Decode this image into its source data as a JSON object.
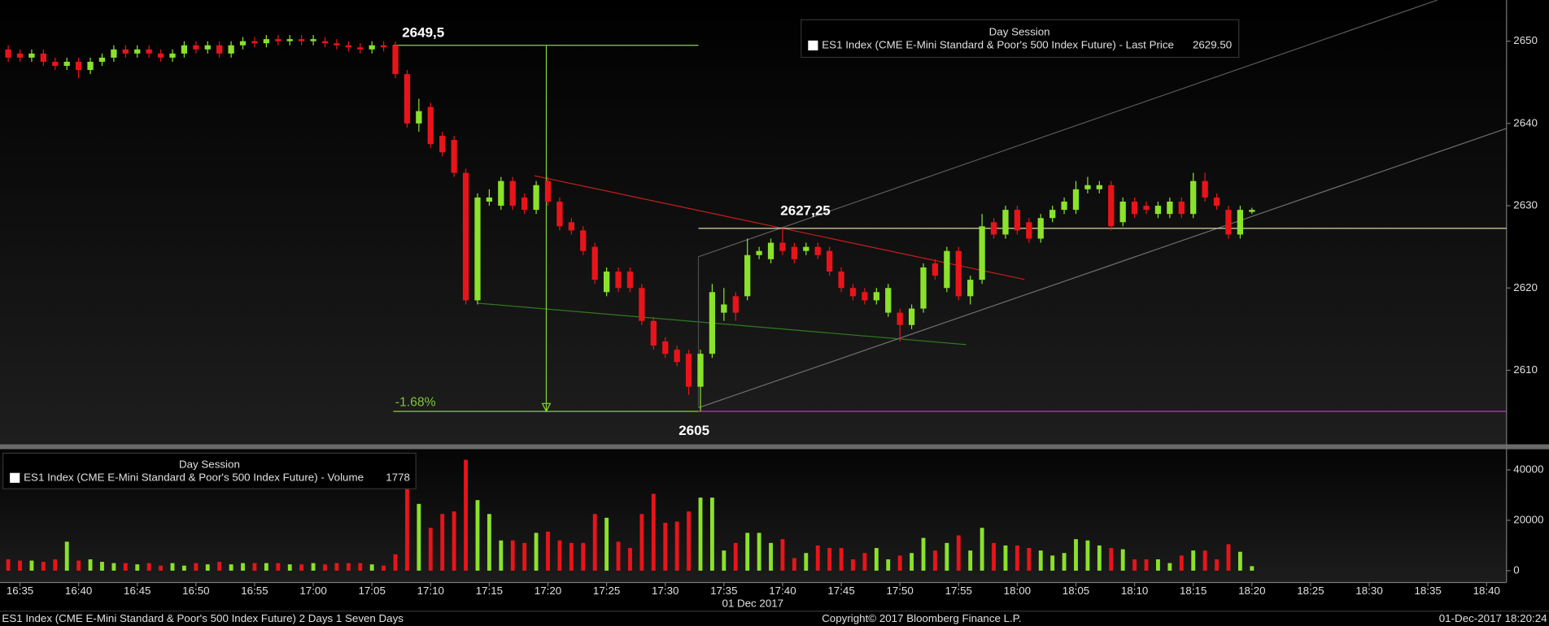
{
  "chart_data": [
    {
      "type": "candlestick",
      "legend_title": "Day Session",
      "series": [
        {
          "name": "ES1 Index (CME E-Mini Standard & Poor's 500 Index Future) - Last Price",
          "last_label": "2629.50",
          "open": [
            2649,
            2648.5,
            2648,
            2648.5,
            2647.5,
            2647,
            2647.5,
            2646.5,
            2647.5,
            2648,
            2649,
            2648.5,
            2649,
            2648.5,
            2648,
            2648.5,
            2649.5,
            2649,
            2649.5,
            2648.5,
            2649.5,
            2650,
            2649.75,
            2650.25,
            2650,
            2650.25,
            2650,
            2650,
            2649.75,
            2649.5,
            2649.25,
            2649,
            2649.5,
            2649.5,
            2646,
            2640,
            2642,
            2638.5,
            2638,
            2634,
            2618.5,
            2630.5,
            2630,
            2633,
            2631,
            2629.5,
            2633,
            2630.5,
            2628,
            2627,
            2625,
            2619.5,
            2622,
            2622,
            2620,
            2616,
            2613.5,
            2612.5,
            2612,
            2608,
            2612,
            2617,
            2619,
            2619,
            2624,
            2623.5,
            2625.5,
            2625,
            2624.5,
            2625,
            2624.5,
            2622,
            2620,
            2619.5,
            2618.5,
            2617,
            2617,
            2615.5,
            2617.5,
            2623,
            2620,
            2624.5,
            2619,
            2621,
            2628,
            2626.5,
            2629.5,
            2628,
            2626,
            2628.5,
            2629.5,
            2629.5,
            2632,
            2632,
            2632.5,
            2628,
            2630.5,
            2630,
            2629,
            2629,
            2630.5,
            2629,
            2633,
            2631,
            2629.5,
            2626.5,
            2629.25
          ],
          "high": [
            2649.5,
            2649,
            2649,
            2649,
            2648,
            2648,
            2648,
            2648,
            2648.5,
            2649.5,
            2649.5,
            2649.5,
            2649.5,
            2649,
            2649,
            2650,
            2650,
            2650,
            2650,
            2650,
            2650.5,
            2650.5,
            2650.75,
            2650.75,
            2650.75,
            2650.75,
            2650.75,
            2650.5,
            2650.25,
            2650,
            2649.75,
            2650,
            2650,
            2650,
            2646.5,
            2643,
            2642.5,
            2639,
            2638.5,
            2634.5,
            2631.5,
            2632,
            2633.5,
            2633.5,
            2631.5,
            2633,
            2633.5,
            2631,
            2628.5,
            2627.5,
            2625.5,
            2622.5,
            2622.5,
            2622.5,
            2620.5,
            2616.5,
            2614,
            2613,
            2612.5,
            2612.5,
            2620.5,
            2620,
            2619.5,
            2626,
            2625,
            2626,
            2627.25,
            2625.5,
            2625.5,
            2625.5,
            2625,
            2622.5,
            2620.5,
            2620,
            2620,
            2620.5,
            2617.5,
            2618,
            2623,
            2623.5,
            2625,
            2625,
            2621.5,
            2629,
            2628.5,
            2630,
            2630,
            2628.5,
            2629,
            2630,
            2631,
            2633,
            2633.5,
            2633,
            2633,
            2631,
            2631,
            2630.5,
            2630.5,
            2631,
            2631,
            2634,
            2634,
            2631.5,
            2630,
            2630,
            2629.75
          ],
          "low": [
            2647.5,
            2647.5,
            2647.5,
            2647,
            2646.5,
            2646.5,
            2645.5,
            2646,
            2647,
            2647.5,
            2648,
            2648,
            2648,
            2647.5,
            2647.5,
            2648,
            2648.5,
            2648.5,
            2648,
            2648,
            2649,
            2649.25,
            2649.25,
            2649.5,
            2649.5,
            2649.5,
            2649.5,
            2649.25,
            2649,
            2648.75,
            2648.5,
            2648.5,
            2648.75,
            2645.5,
            2639.5,
            2639,
            2637,
            2636,
            2633.5,
            2618,
            2618,
            2630,
            2629.5,
            2629.5,
            2629,
            2629,
            2630,
            2627,
            2626.5,
            2624,
            2620.5,
            2619,
            2619.5,
            2619.5,
            2615.5,
            2612.5,
            2611.5,
            2610.5,
            2607,
            2605,
            2611.5,
            2616,
            2616,
            2618.5,
            2623.5,
            2623,
            2624,
            2623,
            2624,
            2623.5,
            2621.5,
            2619.5,
            2618.5,
            2618,
            2618,
            2616.5,
            2613.5,
            2615,
            2617,
            2621,
            2619.5,
            2618.5,
            2618,
            2620.5,
            2626,
            2626,
            2626.5,
            2625.5,
            2625.5,
            2628,
            2629,
            2629,
            2631.5,
            2631.5,
            2627,
            2627.5,
            2628.5,
            2629,
            2628.5,
            2628.5,
            2628.5,
            2628.5,
            2630.5,
            2629.5,
            2626,
            2626,
            2629
          ],
          "close": [
            2648,
            2648,
            2648.5,
            2647.5,
            2647,
            2647.5,
            2646.5,
            2647.5,
            2648,
            2649,
            2648.5,
            2649,
            2648.5,
            2648,
            2648.5,
            2649.5,
            2649,
            2649.5,
            2648.5,
            2649.5,
            2650,
            2649.75,
            2650.25,
            2650,
            2650.25,
            2650,
            2650.25,
            2649.75,
            2649.5,
            2649.25,
            2649,
            2649.5,
            2649.25,
            2646,
            2640,
            2641.5,
            2637.5,
            2636.5,
            2634,
            2618.5,
            2631,
            2631,
            2633,
            2630,
            2629.5,
            2632.5,
            2630.5,
            2627.5,
            2627,
            2624.5,
            2621,
            2622,
            2620,
            2620,
            2616,
            2613,
            2612,
            2611,
            2608,
            2612,
            2619.5,
            2618,
            2617,
            2624,
            2624.5,
            2625.5,
            2624.5,
            2623.5,
            2625,
            2624,
            2622,
            2620,
            2619,
            2618.5,
            2619.5,
            2620,
            2615.5,
            2617.5,
            2622.5,
            2621.5,
            2624.5,
            2619,
            2621,
            2627.5,
            2626.5,
            2629.5,
            2627,
            2626,
            2628.5,
            2629.5,
            2630.5,
            2632,
            2632.5,
            2632.5,
            2627.5,
            2630.5,
            2629,
            2629.5,
            2630,
            2630.5,
            2629,
            2633,
            2631,
            2630,
            2626.5,
            2629.5,
            2629.5
          ]
        }
      ],
      "x": [
        994,
        995,
        996,
        997,
        998,
        999,
        1000,
        1001,
        1002,
        1003,
        1004,
        1005,
        1006,
        1007,
        1008,
        1009,
        1010,
        1011,
        1012,
        1013,
        1014,
        1015,
        1016,
        1017,
        1018,
        1019,
        1020,
        1021,
        1022,
        1023,
        1024,
        1025,
        1026,
        1027,
        1028,
        1029,
        1030,
        1031,
        1032,
        1033,
        1034,
        1035,
        1036,
        1037,
        1038,
        1039,
        1040,
        1041,
        1042,
        1043,
        1044,
        1045,
        1046,
        1047,
        1048,
        1049,
        1050,
        1051,
        1052,
        1053,
        1054,
        1055,
        1056,
        1057,
        1058,
        1059,
        1060,
        1061,
        1062,
        1063,
        1064,
        1065,
        1066,
        1067,
        1068,
        1069,
        1070,
        1071,
        1072,
        1073,
        1074,
        1075,
        1076,
        1077,
        1078,
        1079,
        1080,
        1081,
        1082,
        1083,
        1084,
        1085,
        1086,
        1087,
        1088,
        1089,
        1090,
        1091,
        1092,
        1093,
        1094,
        1095,
        1096,
        1097,
        1098,
        1099,
        1100
      ],
      "up_color": "#8ae22a",
      "down_color": "#e8141a",
      "xlim": [
        993.3,
        1121.7
      ],
      "xticks": [
        {
          "value": 995,
          "label": "16:35"
        },
        {
          "value": 1000,
          "label": "16:40"
        },
        {
          "value": 1005,
          "label": "16:45"
        },
        {
          "value": 1010,
          "label": "16:50"
        },
        {
          "value": 1015,
          "label": "16:55"
        },
        {
          "value": 1020,
          "label": "17:00"
        },
        {
          "value": 1025,
          "label": "17:05"
        },
        {
          "value": 1030,
          "label": "17:10"
        },
        {
          "value": 1035,
          "label": "17:15"
        },
        {
          "value": 1040,
          "label": "17:20"
        },
        {
          "value": 1045,
          "label": "17:25"
        },
        {
          "value": 1050,
          "label": "17:30"
        },
        {
          "value": 1055,
          "label": "17:35"
        },
        {
          "value": 1060,
          "label": "17:40"
        },
        {
          "value": 1065,
          "label": "17:45"
        },
        {
          "value": 1070,
          "label": "17:50"
        },
        {
          "value": 1075,
          "label": "17:55"
        },
        {
          "value": 1080,
          "label": "18:00"
        },
        {
          "value": 1085,
          "label": "18:05"
        },
        {
          "value": 1090,
          "label": "18:10"
        },
        {
          "value": 1095,
          "label": "18:15"
        },
        {
          "value": 1100,
          "label": "18:20"
        },
        {
          "value": 1105,
          "label": "18:25"
        },
        {
          "value": 1110,
          "label": "18:30"
        },
        {
          "value": 1115,
          "label": "18:35"
        },
        {
          "value": 1120,
          "label": "18:40"
        }
      ],
      "x_date_label": "01 Dec 2017",
      "ylim": [
        2601,
        2655
      ],
      "yticks": [
        2610,
        2620,
        2630,
        2640,
        2650
      ],
      "grid": false,
      "annotations": [
        {
          "value": 2649.5,
          "label": "2649,5"
        },
        {
          "value": 2627.25,
          "label": "2627,25"
        },
        {
          "value": 2605,
          "label": "2605"
        }
      ],
      "change_label": "-1.68%"
    },
    {
      "type": "bar",
      "legend_title": "Day Session",
      "series": [
        {
          "name": "ES1 Index (CME E-Mini Standard & Poor's 500 Index Future) - Volume",
          "values": [
            4500,
            4000,
            4000,
            3500,
            4500,
            11500,
            4000,
            4500,
            3500,
            3000,
            3000,
            2500,
            3000,
            2000,
            3000,
            2000,
            3000,
            2500,
            3500,
            2500,
            3000,
            3000,
            3000,
            3000,
            2500,
            2500,
            3000,
            2500,
            3000,
            3000,
            3000,
            2500,
            2000,
            6500,
            40000,
            26500,
            17000,
            22500,
            23500,
            44000,
            28000,
            22500,
            12000,
            12000,
            11000,
            15000,
            15500,
            12000,
            11000,
            11000,
            22500,
            21000,
            11500,
            9000,
            22500,
            30500,
            19000,
            19500,
            23500,
            29000,
            29000,
            8000,
            11000,
            15000,
            15000,
            11000,
            12500,
            5000,
            7000,
            10000,
            9000,
            9000,
            4500,
            7000,
            9000,
            4500,
            6000,
            7000,
            13000,
            8000,
            11000,
            14000,
            8000,
            17000,
            11000,
            10000,
            10000,
            9000,
            8000,
            6000,
            7000,
            12500,
            12000,
            10000,
            9000,
            8500,
            4500,
            4500,
            4500,
            3000,
            6000,
            8000,
            8000,
            4500,
            10500,
            7500,
            1778
          ]
        }
      ],
      "ylim": [
        -4700,
        48200
      ],
      "yticks": [
        0,
        20000,
        40000
      ]
    }
  ],
  "footer": {
    "left": "ES1 Index (CME E-Mini Standard & Poor's 500 Index Future) 2 Days 1 Seven Days",
    "copyright": "Copyright© 2017 Bloomberg Finance L.P.",
    "timestamp": "01-Dec-2017 18:20:24"
  }
}
